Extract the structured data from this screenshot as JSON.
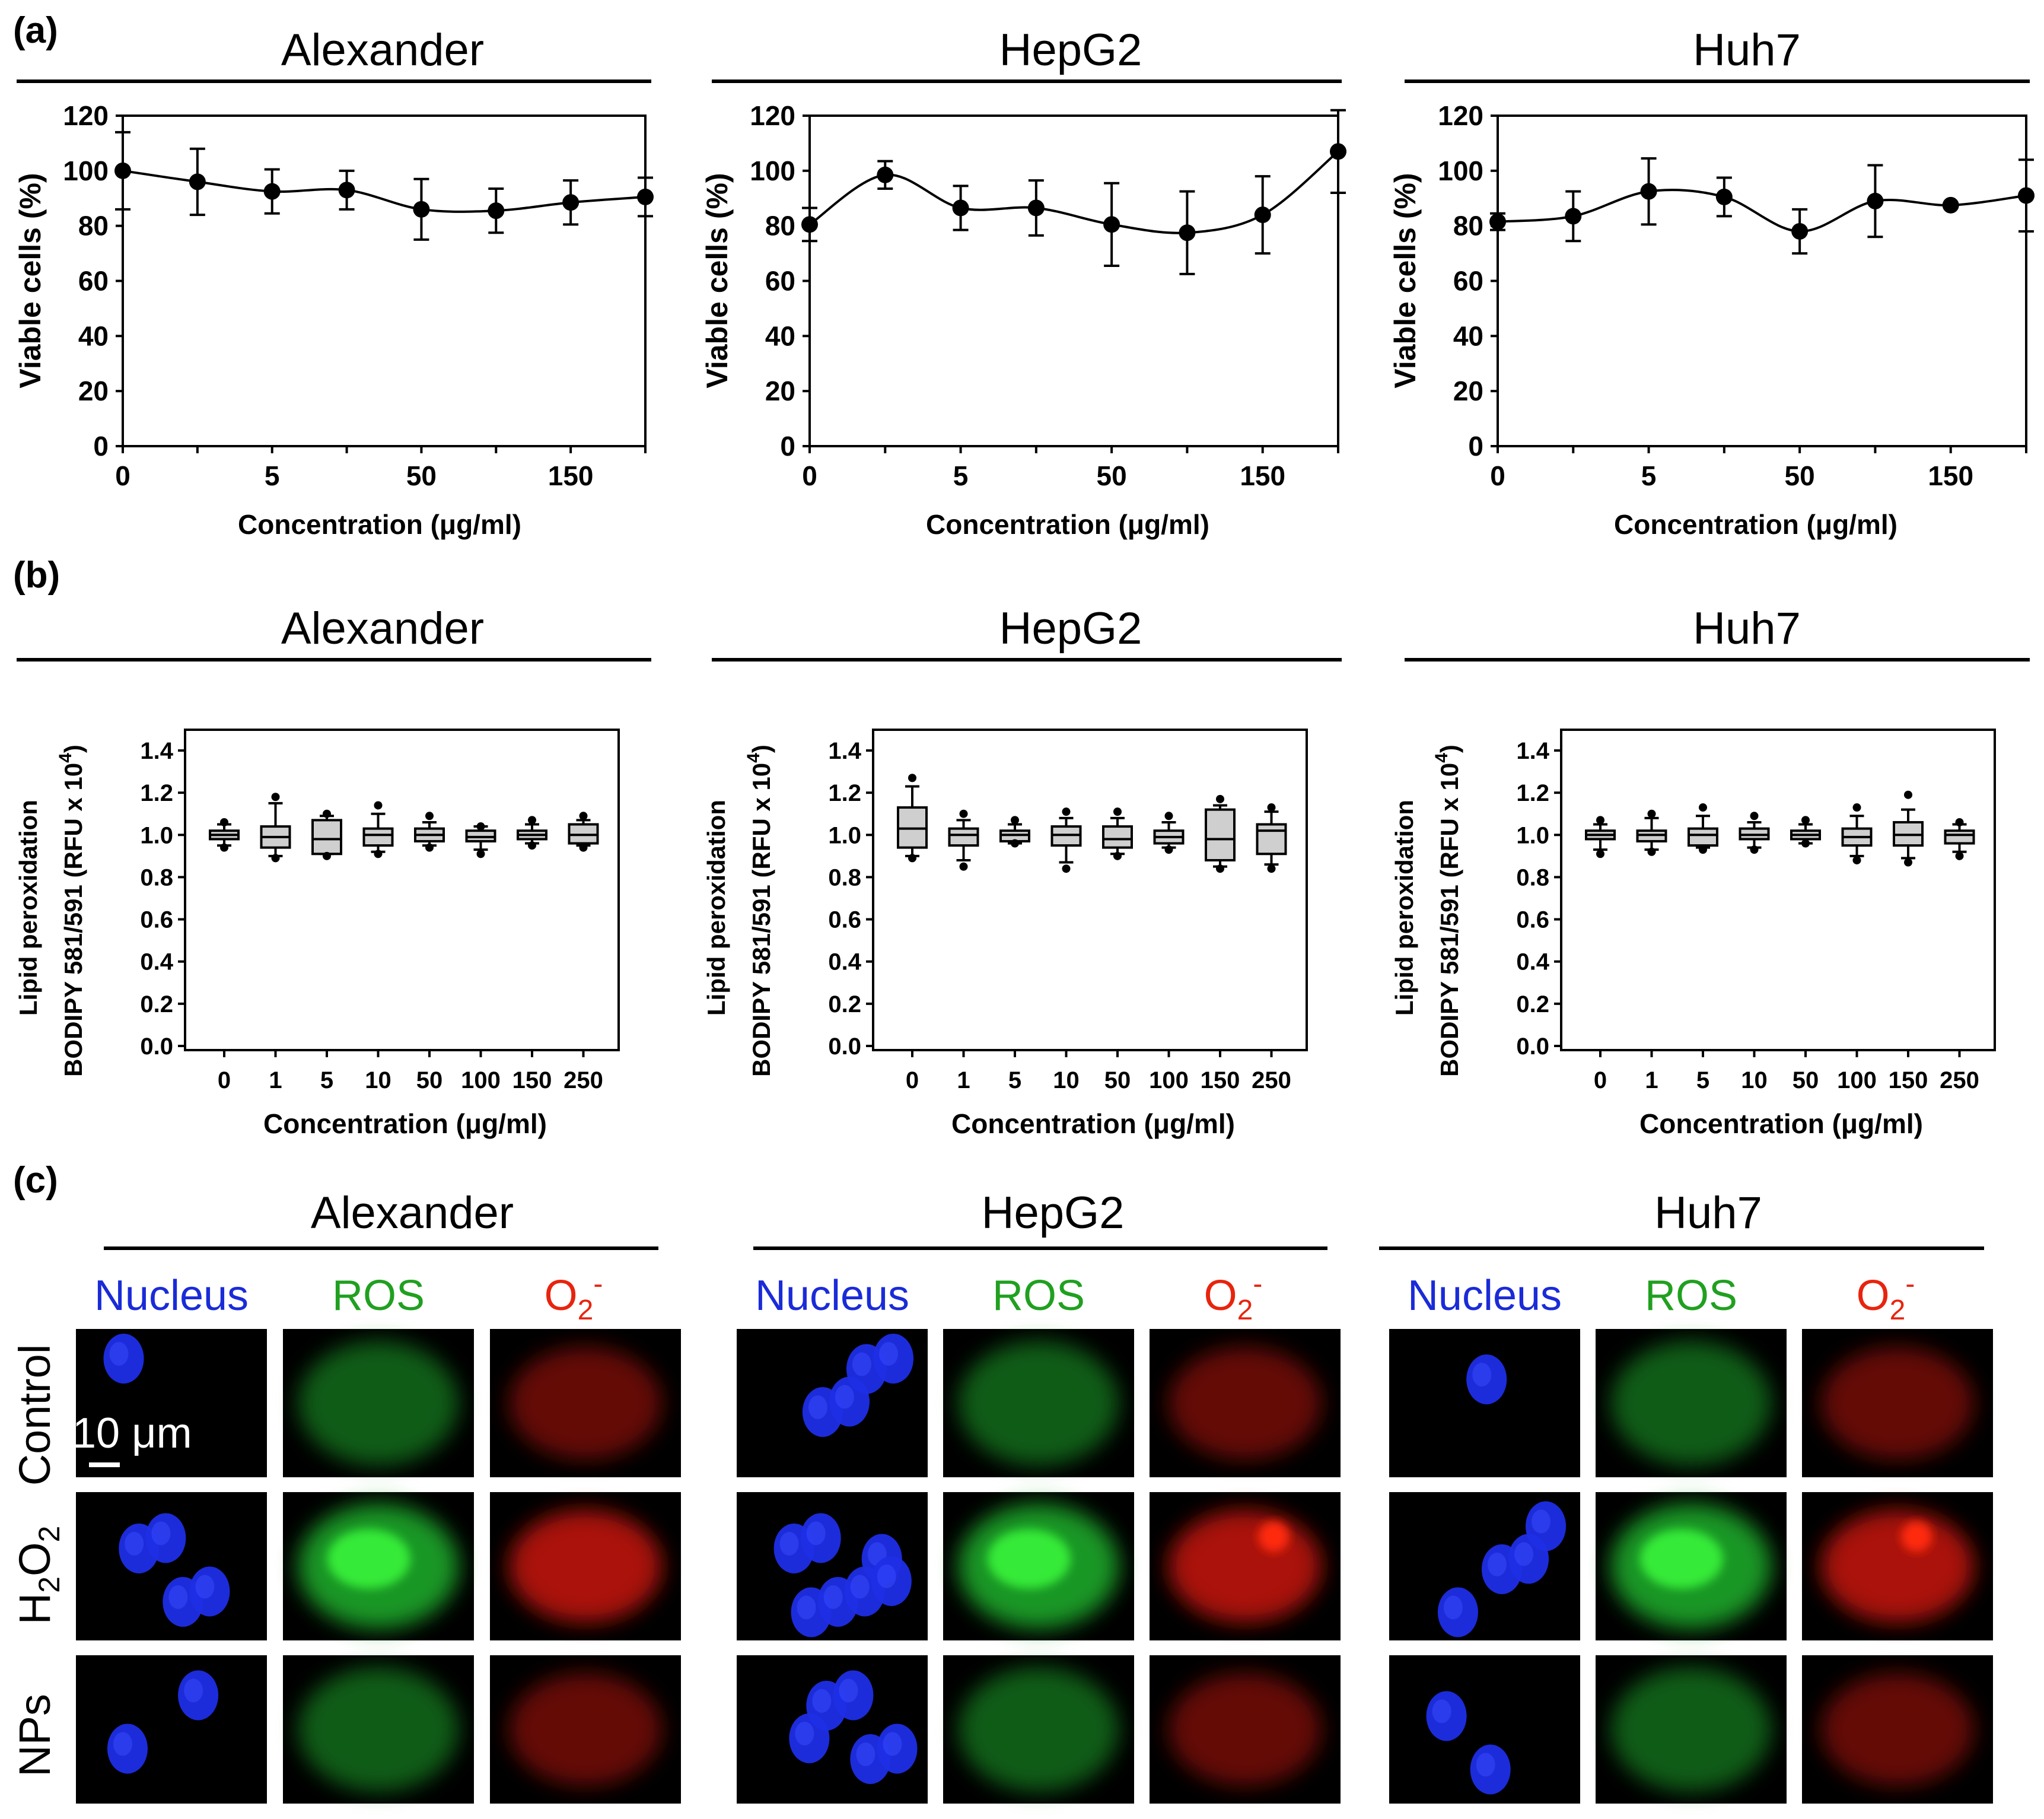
{
  "panel_labels": {
    "a": "(a)",
    "b": "(b)",
    "c": "(c)"
  },
  "cell_lines": [
    "Alexander",
    "HepG2",
    "Huh7"
  ],
  "colors": {
    "nucleus": "#1a2bd8",
    "ros": "#20a020",
    "o2": "#e8240e",
    "box_fill": "#cfcfcf"
  },
  "panel_a": {
    "ylabel": "Viable cells (%)",
    "xlabel": "Concentration (μg/ml)",
    "y_ticks": [
      "0",
      "20",
      "40",
      "60",
      "80",
      "100",
      "120"
    ],
    "x_ticks": [
      "0",
      "5",
      "50",
      "150"
    ]
  },
  "panel_b": {
    "ylabel_line1": "Lipid peroxidation",
    "ylabel_line2": "BODIPY 581/591 (RFU x 10",
    "ylabel_sup": "4",
    "ylabel_tail": ")",
    "xlabel": "Concentration (μg/ml)",
    "y_ticks": [
      "0.0",
      "0.2",
      "0.4",
      "0.6",
      "0.8",
      "1.0",
      "1.2",
      "1.4"
    ],
    "x_ticks": [
      "0",
      "1",
      "5",
      "10",
      "50",
      "100",
      "150",
      "250"
    ]
  },
  "panel_c": {
    "channels": {
      "nucleus": "Nucleus",
      "ros": "ROS",
      "o2_base": "O",
      "o2_sub": "2",
      "o2_sup": "-"
    },
    "rows": {
      "control": "Control",
      "h2o2_a": "H",
      "h2o2_sub1": "2",
      "h2o2_b": "O",
      "h2o2_sub2": "2",
      "nps": "NPs"
    },
    "scale_bar": "10 μm"
  },
  "chart_data": [
    {
      "type": "line",
      "title": "Alexander",
      "xlabel": "Concentration (μg/ml)",
      "ylabel": "Viable cells (%)",
      "ylim": [
        0,
        120
      ],
      "x": [
        "0",
        "1",
        "5",
        "10",
        "50",
        "100",
        "150",
        "250"
      ],
      "values": [
        100,
        96,
        92.5,
        93,
        86,
        85.5,
        88.5,
        90.5
      ],
      "errors": [
        14,
        12,
        8,
        7,
        11,
        8,
        8,
        7
      ]
    },
    {
      "type": "line",
      "title": "HepG2",
      "xlabel": "Concentration (μg/ml)",
      "ylabel": "Viable cells (%)",
      "ylim": [
        0,
        120
      ],
      "x": [
        "0",
        "1",
        "5",
        "10",
        "50",
        "100",
        "150",
        "250"
      ],
      "values": [
        80.5,
        98.5,
        86.5,
        86.5,
        80.5,
        77.5,
        84,
        107
      ],
      "errors": [
        6,
        5,
        8,
        10,
        15,
        15,
        14,
        15
      ]
    },
    {
      "type": "line",
      "title": "Huh7",
      "xlabel": "Concentration (μg/ml)",
      "ylabel": "Viable cells (%)",
      "ylim": [
        0,
        120
      ],
      "x": [
        "0",
        "1",
        "5",
        "10",
        "50",
        "100",
        "150",
        "250"
      ],
      "values": [
        81.5,
        83.5,
        92.5,
        90.5,
        78,
        89,
        87.5,
        91
      ],
      "errors": [
        3,
        9,
        12,
        7,
        8,
        13,
        0,
        13
      ]
    },
    {
      "type": "box",
      "title": "Alexander",
      "xlabel": "Concentration (μg/ml)",
      "ylabel": "Lipid peroxidation BODIPY 581/591 (RFU x 10^4)",
      "ylim": [
        0,
        1.4
      ],
      "categories": [
        "0",
        "1",
        "5",
        "10",
        "50",
        "100",
        "150",
        "250"
      ],
      "boxes": [
        {
          "whislo": 0.95,
          "q1": 0.98,
          "med": 1.0,
          "q3": 1.02,
          "whishi": 1.05,
          "fliers": [
            0.94,
            1.06
          ]
        },
        {
          "whislo": 0.9,
          "q1": 0.94,
          "med": 0.99,
          "q3": 1.04,
          "whishi": 1.15,
          "fliers": [
            0.89,
            1.18
          ]
        },
        {
          "whislo": 0.91,
          "q1": 0.91,
          "med": 0.98,
          "q3": 1.07,
          "whishi": 1.09,
          "fliers": [
            0.9,
            1.1
          ]
        },
        {
          "whislo": 0.92,
          "q1": 0.95,
          "med": 1.0,
          "q3": 1.03,
          "whishi": 1.1,
          "fliers": [
            0.91,
            1.14
          ]
        },
        {
          "whislo": 0.95,
          "q1": 0.97,
          "med": 1.0,
          "q3": 1.03,
          "whishi": 1.06,
          "fliers": [
            0.94,
            1.09
          ]
        },
        {
          "whislo": 0.93,
          "q1": 0.97,
          "med": 0.99,
          "q3": 1.02,
          "whishi": 1.04,
          "fliers": [
            0.91,
            1.04
          ]
        },
        {
          "whislo": 0.96,
          "q1": 0.98,
          "med": 1.0,
          "q3": 1.02,
          "whishi": 1.05,
          "fliers": [
            0.95,
            1.07
          ]
        },
        {
          "whislo": 0.95,
          "q1": 0.96,
          "med": 1.0,
          "q3": 1.05,
          "whishi": 1.07,
          "fliers": [
            0.94,
            1.09
          ]
        }
      ]
    },
    {
      "type": "box",
      "title": "HepG2",
      "xlabel": "Concentration (μg/ml)",
      "ylabel": "Lipid peroxidation BODIPY 581/591 (RFU x 10^4)",
      "ylim": [
        0,
        1.4
      ],
      "categories": [
        "0",
        "1",
        "5",
        "10",
        "50",
        "100",
        "150",
        "250"
      ],
      "boxes": [
        {
          "whislo": 0.9,
          "q1": 0.94,
          "med": 1.03,
          "q3": 1.13,
          "whishi": 1.23,
          "fliers": [
            0.89,
            1.27
          ]
        },
        {
          "whislo": 0.88,
          "q1": 0.95,
          "med": 1.0,
          "q3": 1.03,
          "whishi": 1.07,
          "fliers": [
            0.85,
            1.1
          ]
        },
        {
          "whislo": 0.96,
          "q1": 0.97,
          "med": 1.0,
          "q3": 1.02,
          "whishi": 1.05,
          "fliers": [
            0.96,
            1.07
          ]
        },
        {
          "whislo": 0.87,
          "q1": 0.95,
          "med": 1.0,
          "q3": 1.04,
          "whishi": 1.08,
          "fliers": [
            0.84,
            1.11
          ]
        },
        {
          "whislo": 0.91,
          "q1": 0.94,
          "med": 0.98,
          "q3": 1.04,
          "whishi": 1.08,
          "fliers": [
            0.9,
            1.11
          ]
        },
        {
          "whislo": 0.94,
          "q1": 0.96,
          "med": 0.99,
          "q3": 1.02,
          "whishi": 1.06,
          "fliers": [
            0.93,
            1.09
          ]
        },
        {
          "whislo": 0.85,
          "q1": 0.88,
          "med": 0.98,
          "q3": 1.12,
          "whishi": 1.14,
          "fliers": [
            0.84,
            1.17
          ]
        },
        {
          "whislo": 0.86,
          "q1": 0.91,
          "med": 1.02,
          "q3": 1.05,
          "whishi": 1.11,
          "fliers": [
            0.84,
            1.13
          ]
        }
      ]
    },
    {
      "type": "box",
      "title": "Huh7",
      "xlabel": "Concentration (μg/ml)",
      "ylabel": "Lipid peroxidation BODIPY 581/591 (RFU x 10^4)",
      "ylim": [
        0,
        1.4
      ],
      "categories": [
        "0",
        "1",
        "5",
        "10",
        "50",
        "100",
        "150",
        "250"
      ],
      "boxes": [
        {
          "whislo": 0.93,
          "q1": 0.98,
          "med": 1.0,
          "q3": 1.02,
          "whishi": 1.05,
          "fliers": [
            0.91,
            1.07
          ]
        },
        {
          "whislo": 0.93,
          "q1": 0.97,
          "med": 1.0,
          "q3": 1.02,
          "whishi": 1.08,
          "fliers": [
            0.92,
            1.1
          ]
        },
        {
          "whislo": 0.94,
          "q1": 0.95,
          "med": 1.0,
          "q3": 1.03,
          "whishi": 1.09,
          "fliers": [
            0.93,
            1.13
          ]
        },
        {
          "whislo": 0.94,
          "q1": 0.98,
          "med": 1.0,
          "q3": 1.03,
          "whishi": 1.06,
          "fliers": [
            0.93,
            1.09
          ]
        },
        {
          "whislo": 0.96,
          "q1": 0.98,
          "med": 1.0,
          "q3": 1.02,
          "whishi": 1.05,
          "fliers": [
            0.96,
            1.07
          ]
        },
        {
          "whislo": 0.9,
          "q1": 0.95,
          "med": 0.99,
          "q3": 1.03,
          "whishi": 1.09,
          "fliers": [
            0.88,
            1.13
          ]
        },
        {
          "whislo": 0.89,
          "q1": 0.95,
          "med": 1.0,
          "q3": 1.06,
          "whishi": 1.12,
          "fliers": [
            0.87,
            1.19
          ]
        },
        {
          "whislo": 0.92,
          "q1": 0.96,
          "med": 1.0,
          "q3": 1.02,
          "whishi": 1.05,
          "fliers": [
            0.9,
            1.06
          ]
        }
      ]
    }
  ]
}
